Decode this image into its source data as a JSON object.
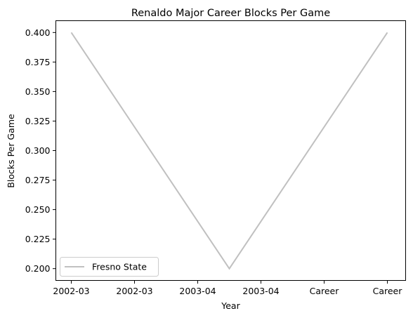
{
  "chart_data": {
    "type": "line",
    "title": "Renaldo Major Career Blocks Per Game",
    "xlabel": "Year",
    "ylabel": "Blocks Per Game",
    "x_tick_labels": [
      "2002-03",
      "2002-03",
      "2003-04",
      "2003-04",
      "Career",
      "Career"
    ],
    "y_ticks": [
      0.2,
      0.225,
      0.25,
      0.275,
      0.3,
      0.325,
      0.35,
      0.375,
      0.4
    ],
    "y_tick_labels": [
      "0.200",
      "0.225",
      "0.250",
      "0.275",
      "0.300",
      "0.325",
      "0.350",
      "0.375",
      "0.400"
    ],
    "ylim": [
      0.19,
      0.41
    ],
    "grid": false,
    "legend_position": "lower left",
    "series": [
      {
        "name": "Fresno State",
        "color": "#c0c0c0",
        "x": [
          "2002-03",
          "2003-04",
          "Career"
        ],
        "values": [
          0.4,
          0.2,
          0.4
        ]
      }
    ]
  }
}
